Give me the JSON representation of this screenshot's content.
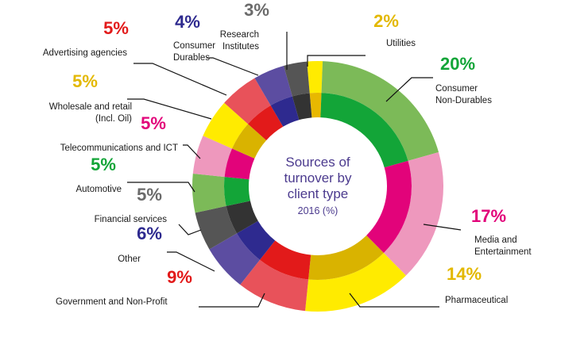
{
  "chart_data": {
    "type": "pie",
    "title": "Sources of turnover by client type",
    "subtitle": "2016 (%)",
    "slices": [
      {
        "label": "Utilities",
        "label_lines": [
          "Utilities"
        ],
        "value": 2,
        "pct_text": "2%",
        "outer": "#ffeb00",
        "inner": "#e8b800",
        "text_color": "#e3b800"
      },
      {
        "label": "Consumer Non-Durables",
        "label_lines": [
          "Consumer",
          "Non-Durables"
        ],
        "value": 20,
        "pct_text": "20%",
        "outer": "#7cba58",
        "inner": "#13a538",
        "text_color": "#13a538"
      },
      {
        "label": "Media and Entertainment",
        "label_lines": [
          "Media and",
          "Entertainment"
        ],
        "value": 17,
        "pct_text": "17%",
        "outer": "#ee98bd",
        "inner": "#e2037a",
        "text_color": "#e2037a"
      },
      {
        "label": "Pharmaceutical",
        "label_lines": [
          "Pharmaceutical"
        ],
        "value": 14,
        "pct_text": "14%",
        "outer": "#ffeb00",
        "inner": "#d9b300",
        "text_color": "#e3b800"
      },
      {
        "label": "Government and Non-Profit",
        "label_lines": [
          "Government and Non-Profit"
        ],
        "value": 9,
        "pct_text": "9%",
        "outer": "#e8525a",
        "inner": "#e21a1a",
        "text_color": "#e21a1a"
      },
      {
        "label": "Other",
        "label_lines": [
          "Other"
        ],
        "value": 6,
        "pct_text": "6%",
        "outer": "#5c4da1",
        "inner": "#2e2a8f",
        "text_color": "#2e2a8f"
      },
      {
        "label": "Financial services",
        "label_lines": [
          "Financial services"
        ],
        "value": 5,
        "pct_text": "5%",
        "outer": "#555555",
        "inner": "#333333",
        "text_color": "#6b6b6b"
      },
      {
        "label": "Automotive",
        "label_lines": [
          "Automotive"
        ],
        "value": 5,
        "pct_text": "5%",
        "outer": "#7cba58",
        "inner": "#13a538",
        "text_color": "#13a538"
      },
      {
        "label": "Telecommunications and ICT",
        "label_lines": [
          "Telecommunications and ICT"
        ],
        "value": 5,
        "pct_text": "5%",
        "outer": "#ee98bd",
        "inner": "#e2037a",
        "text_color": "#e2037a"
      },
      {
        "label": "Wholesale and retail (Incl. Oil)",
        "label_lines": [
          "Wholesale and retail",
          "(Incl. Oil)"
        ],
        "value": 5,
        "pct_text": "5%",
        "outer": "#ffeb00",
        "inner": "#d9b300",
        "text_color": "#e3b800"
      },
      {
        "label": "Advertising agencies",
        "label_lines": [
          "Advertising agencies"
        ],
        "value": 5,
        "pct_text": "5%",
        "outer": "#e8525a",
        "inner": "#e21a1a",
        "text_color": "#e21a1a"
      },
      {
        "label": "Consumer Durables",
        "label_lines": [
          "Consumer",
          "Durables"
        ],
        "value": 4,
        "pct_text": "4%",
        "outer": "#5c4da1",
        "inner": "#2e2a8f",
        "text_color": "#2e2a8f"
      },
      {
        "label": "Research Institutes",
        "label_lines": [
          "Research",
          "Institutes"
        ],
        "value": 3,
        "pct_text": "3%",
        "outer": "#555555",
        "inner": "#333333",
        "text_color": "#6b6b6b"
      }
    ]
  },
  "center": {
    "line1": "Sources of",
    "line2": "turnover by",
    "line3": "client type",
    "line4": "2016 (%)"
  }
}
